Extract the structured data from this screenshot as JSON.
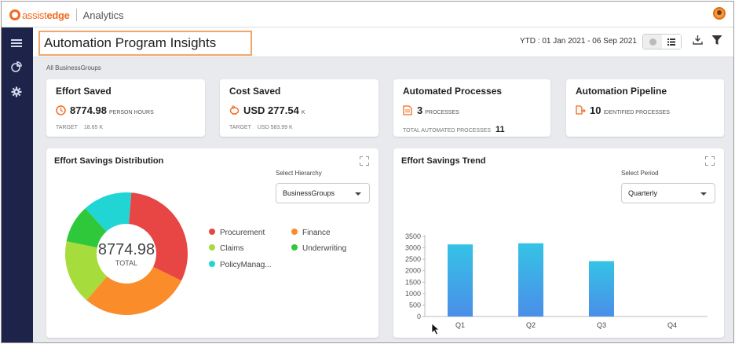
{
  "topbar": {
    "brand_a": "assist",
    "brand_b": "edge",
    "app_name": "Analytics"
  },
  "sidebar": {
    "items": [
      {
        "icon": "hamburger-menu-icon"
      },
      {
        "icon": "pie-chart-icon"
      },
      {
        "icon": "gear-icon"
      }
    ]
  },
  "header": {
    "title": "Automation Program Insights",
    "ytd": "YTD : 01 Jan 2021 - 06 Sep 2021",
    "highlight_color": "#f0a66a"
  },
  "breadcrumb": "All BusinessGroups",
  "kpis": {
    "effort": {
      "title": "Effort Saved",
      "value": "8774.98",
      "unit": "PERSON HOURS",
      "sub_label": "TARGET",
      "sub_value": "18.65 K"
    },
    "cost": {
      "title": "Cost Saved",
      "value": "USD 277.54",
      "unit": "K",
      "sub_label": "TARGET",
      "sub_value": "USD 583.99 K"
    },
    "processes": {
      "title": "Automated Processes",
      "value": "3",
      "unit": "PROCESSES",
      "sub_label": "TOTAL AUTOMATED PROCESSES",
      "sub_value": "11"
    },
    "pipeline": {
      "title": "Automation Pipeline",
      "value": "10",
      "unit": "IDENTIFIED PROCESSES"
    }
  },
  "distribution": {
    "title": "Effort Savings Distribution",
    "select_label": "Select Hierarchy",
    "select_value": "BusinessGroups",
    "center_value": "8774.98",
    "center_label": "TOTAL",
    "slices": [
      {
        "name": "Procurement",
        "color": "#e84545",
        "fraction": 0.31
      },
      {
        "name": "Finance",
        "color": "#fa8c2a",
        "fraction": 0.29
      },
      {
        "name": "Claims",
        "color": "#a6dc3c",
        "fraction": 0.17
      },
      {
        "name": "Underwriting",
        "color": "#2ec83a",
        "fraction": 0.1
      },
      {
        "name": "PolicyManag...",
        "color": "#21d5d5",
        "fraction": 0.13
      }
    ]
  },
  "trend": {
    "title": "Effort Savings Trend",
    "select_label": "Select Period",
    "select_value": "Quarterly"
  },
  "chart_data": {
    "type": "bar",
    "categories": [
      "Q1",
      "Q2",
      "Q3",
      "Q4"
    ],
    "values": [
      3150,
      3200,
      2420,
      0
    ],
    "yticks": [
      0,
      500,
      1000,
      1500,
      2000,
      2500,
      3000,
      3500
    ],
    "ylim": [
      0,
      3500
    ],
    "bar_color_top": "#35c3e6",
    "bar_color_bottom": "#4a8ee8"
  }
}
